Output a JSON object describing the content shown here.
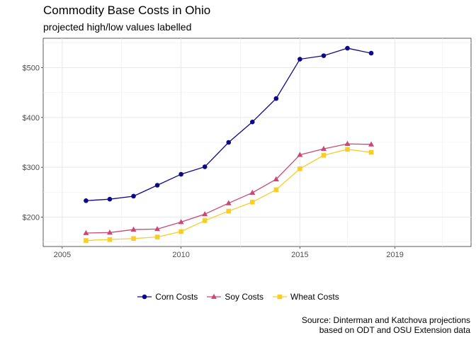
{
  "chart_data": {
    "type": "line",
    "title": "Commodity Base Costs in Ohio",
    "subtitle": "projected high/low values labelled",
    "caption_lines": [
      "Source: Dinterman and Katchova projections",
      "based on ODT and OSU Extension data"
    ],
    "xlabel": "",
    "ylabel": "",
    "xlim": [
      2004.2,
      2022.2
    ],
    "ylim": [
      141,
      559
    ],
    "x_ticks": [
      2005,
      2010,
      2015,
      2019
    ],
    "y_ticks": [
      200,
      300,
      400,
      500
    ],
    "y_tick_labels": [
      "$200",
      "$300",
      "$400",
      "$500"
    ],
    "grid": true,
    "legend_position": "bottom",
    "x": [
      2006,
      2007,
      2008,
      2009,
      2010,
      2011,
      2012,
      2013,
      2014,
      2015,
      2016,
      2017,
      2018
    ],
    "series": [
      {
        "name": "Corn Costs",
        "color": "#0d0887",
        "marker": "circle",
        "values": [
          233,
          236,
          242,
          264,
          286,
          301,
          350,
          391,
          438,
          517,
          524,
          539,
          529
        ]
      },
      {
        "name": "Soy Costs",
        "color": "#cc4778",
        "marker": "triangle",
        "values": [
          168,
          169,
          175,
          176,
          190,
          206,
          228,
          249,
          276,
          325,
          337,
          347,
          346
        ]
      },
      {
        "name": "Wheat Costs",
        "color": "#f8cd25",
        "marker": "square",
        "values": [
          153,
          155,
          157,
          160,
          171,
          193,
          212,
          230,
          255,
          297,
          324,
          336,
          330
        ]
      }
    ]
  }
}
